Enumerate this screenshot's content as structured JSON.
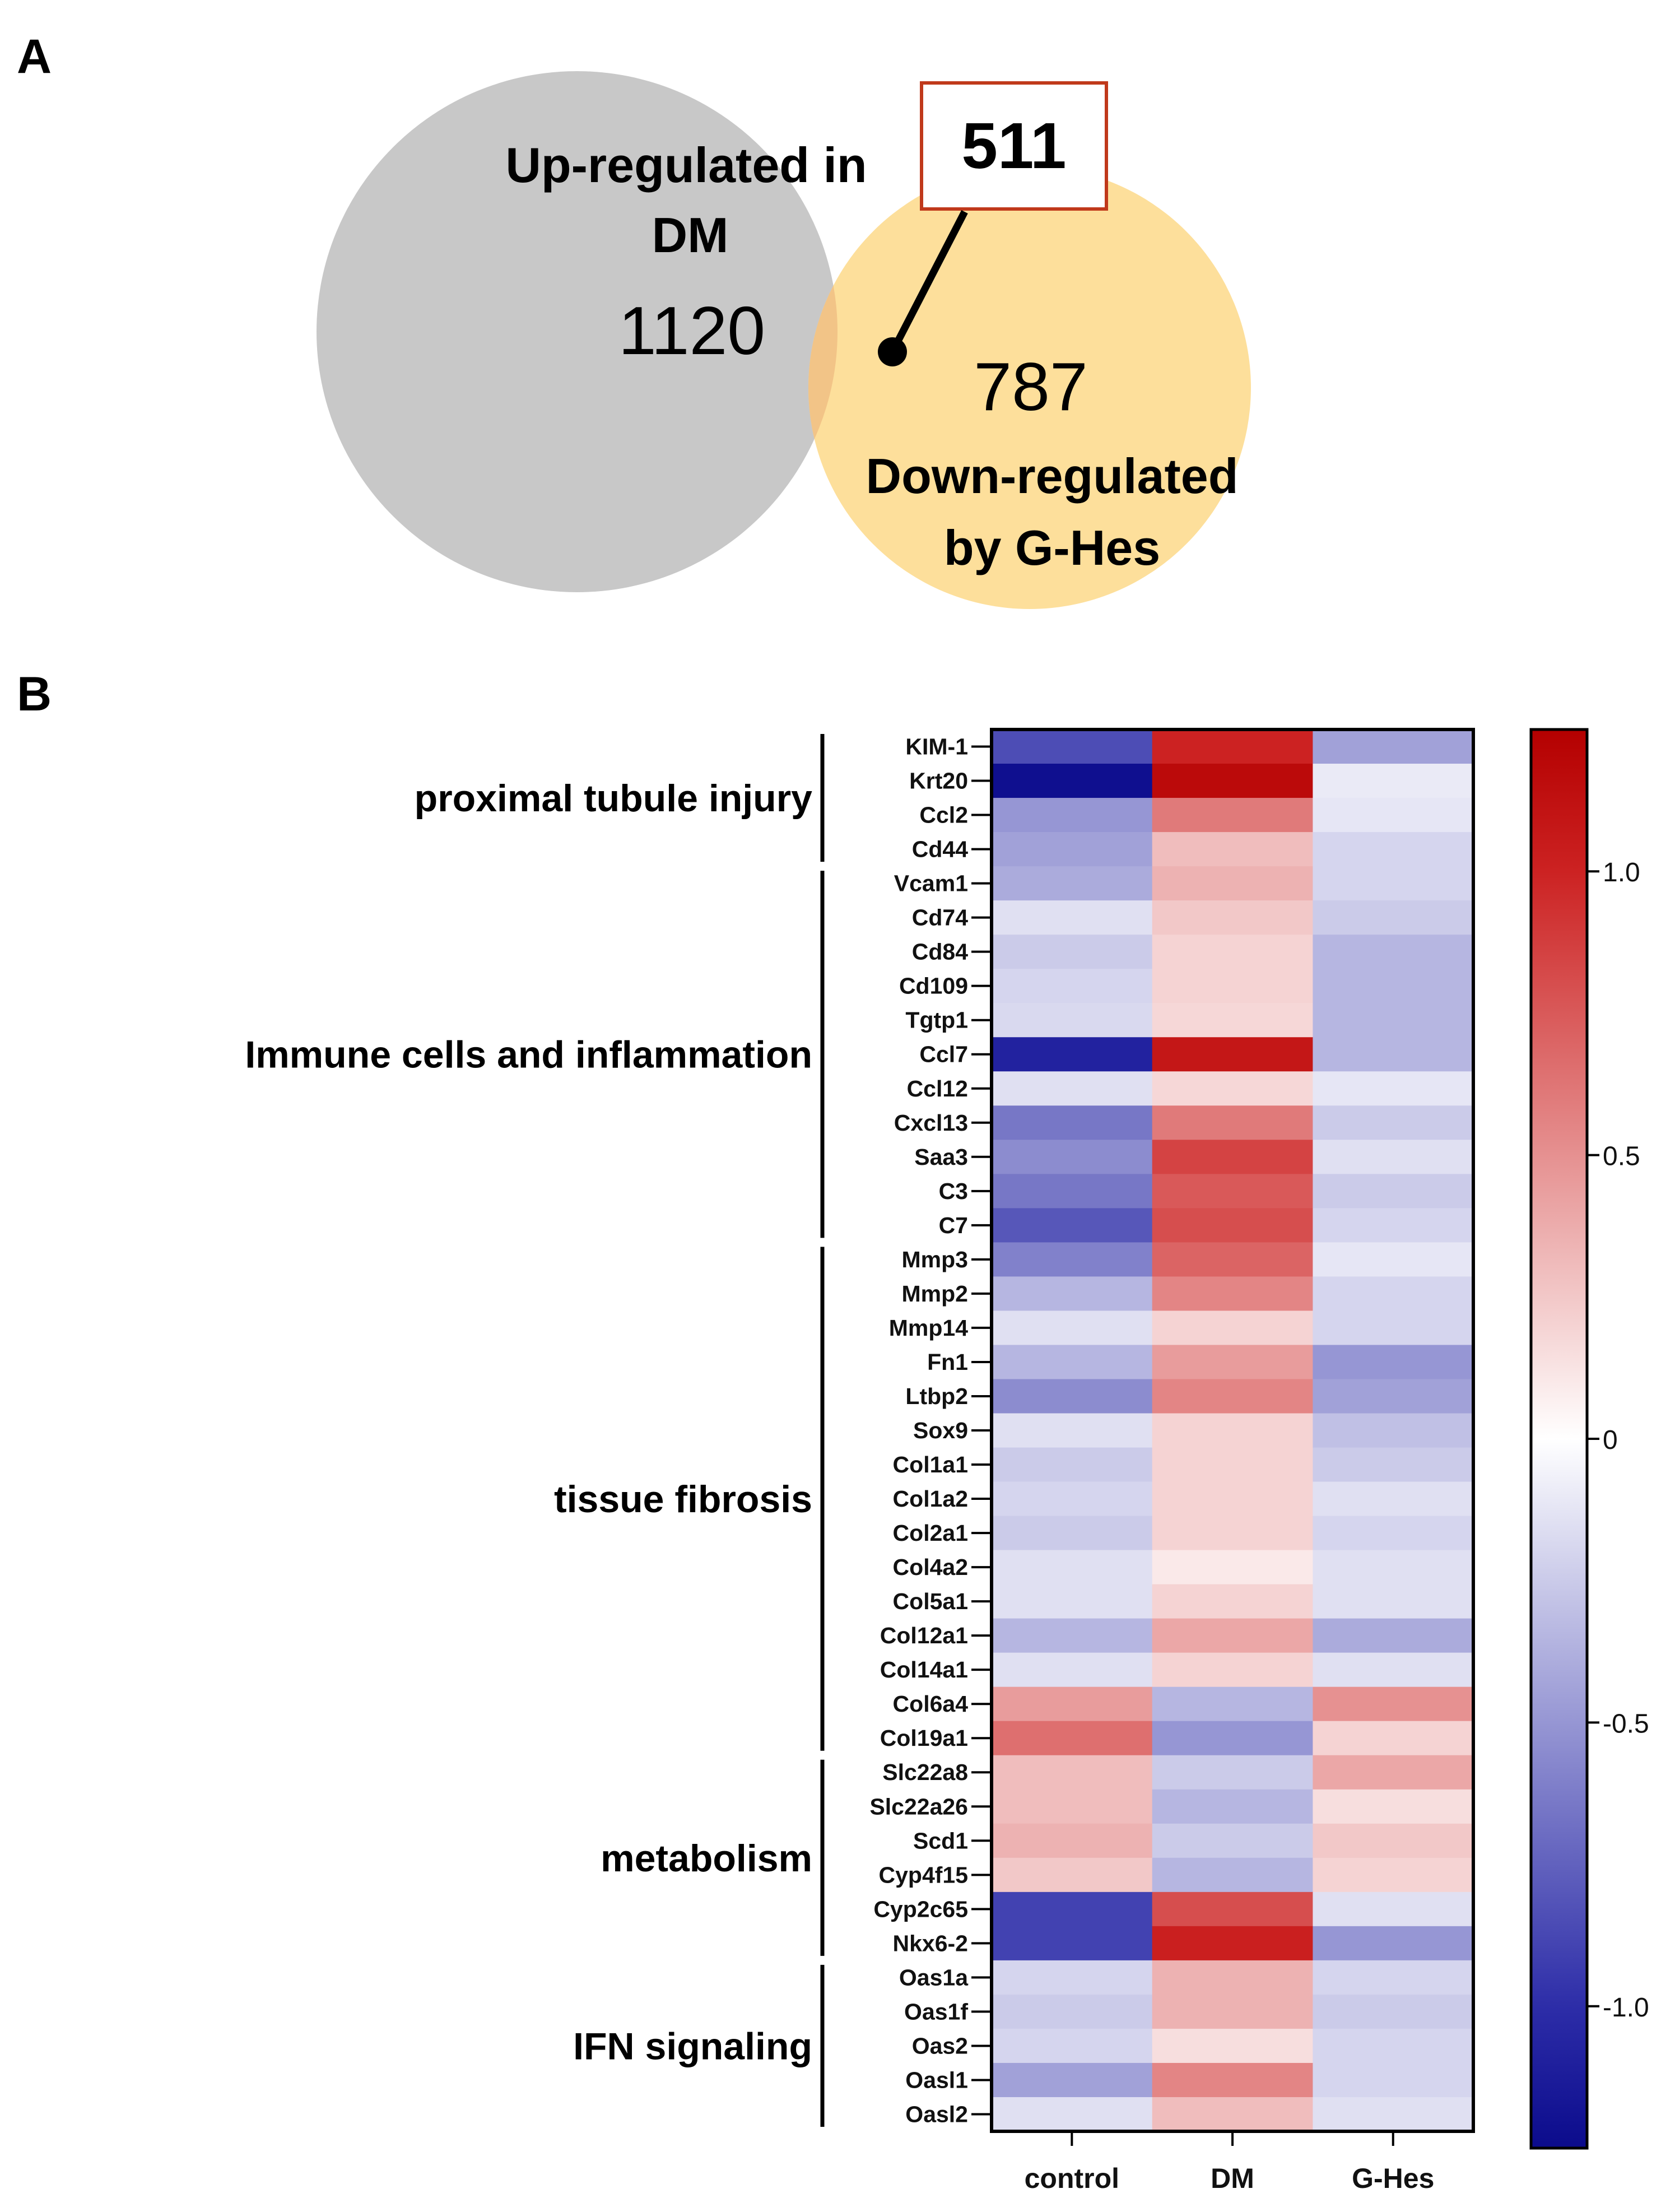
{
  "panels": {
    "a": "A",
    "b": "B"
  },
  "venn": {
    "left_label_line1": "Up-regulated in",
    "left_label_line2": "DM",
    "left_count": "1120",
    "overlap_count": "511",
    "right_count": "787",
    "right_label_line1": "Down-regulated",
    "right_label_line2": "by G-Hes",
    "colors": {
      "left": "#c8c8c8",
      "right": "#fddf9b",
      "overlap": "#f2c487",
      "box_border": "#c0391b"
    }
  },
  "chart_data": {
    "type": "heatmap",
    "columns": [
      "control",
      "DM",
      "G-Hes"
    ],
    "genes": [
      "KIM-1",
      "Krt20",
      "Ccl2",
      "Cd44",
      "Vcam1",
      "Cd74",
      "Cd84",
      "Cd109",
      "Tgtp1",
      "Ccl7",
      "Ccl12",
      "Cxcl13",
      "Saa3",
      "C3",
      "C7",
      "Mmp3",
      "Mmp2",
      "Mmp14",
      "Fn1",
      "Ltbp2",
      "Sox9",
      "Col1a1",
      "Col1a2",
      "Col2a1",
      "Col4a2",
      "Col5a1",
      "Col12a1",
      "Col14a1",
      "Col6a4",
      "Col19a1",
      "Slc22a8",
      "Slc22a26",
      "Scd1",
      "Cyp4f15",
      "Cyp2c65",
      "Nkx6-2",
      "Oas1a",
      "Oas1f",
      "Oas2",
      "Oasl1",
      "Oasl2"
    ],
    "values": [
      [
        -0.85,
        1.0,
        -0.45
      ],
      [
        -1.22,
        1.18,
        -0.1
      ],
      [
        -0.5,
        0.6,
        -0.12
      ],
      [
        -0.45,
        0.3,
        -0.2
      ],
      [
        -0.4,
        0.35,
        -0.2
      ],
      [
        -0.15,
        0.25,
        -0.25
      ],
      [
        -0.25,
        0.2,
        -0.35
      ],
      [
        -0.2,
        0.2,
        -0.35
      ],
      [
        -0.18,
        0.18,
        -0.35
      ],
      [
        -1.08,
        1.08,
        -0.35
      ],
      [
        -0.15,
        0.18,
        -0.12
      ],
      [
        -0.65,
        0.6,
        -0.25
      ],
      [
        -0.55,
        0.85,
        -0.15
      ],
      [
        -0.65,
        0.75,
        -0.25
      ],
      [
        -0.8,
        0.8,
        -0.2
      ],
      [
        -0.6,
        0.7,
        -0.12
      ],
      [
        -0.35,
        0.55,
        -0.2
      ],
      [
        -0.15,
        0.2,
        -0.2
      ],
      [
        -0.35,
        0.45,
        -0.5
      ],
      [
        -0.55,
        0.55,
        -0.45
      ],
      [
        -0.15,
        0.2,
        -0.3
      ],
      [
        -0.25,
        0.2,
        -0.25
      ],
      [
        -0.2,
        0.2,
        -0.15
      ],
      [
        -0.25,
        0.2,
        -0.2
      ],
      [
        -0.15,
        0.1,
        -0.15
      ],
      [
        -0.15,
        0.2,
        -0.15
      ],
      [
        -0.35,
        0.4,
        -0.4
      ],
      [
        -0.15,
        0.2,
        -0.15
      ],
      [
        0.45,
        -0.35,
        0.5
      ],
      [
        0.65,
        -0.5,
        0.2
      ],
      [
        0.3,
        -0.25,
        0.4
      ],
      [
        0.3,
        -0.35,
        0.15
      ],
      [
        0.35,
        -0.25,
        0.25
      ],
      [
        0.25,
        -0.35,
        0.2
      ],
      [
        -0.9,
        0.8,
        -0.15
      ],
      [
        -0.9,
        1.02,
        -0.5
      ],
      [
        -0.2,
        0.35,
        -0.2
      ],
      [
        -0.25,
        0.35,
        -0.25
      ],
      [
        -0.2,
        0.15,
        -0.2
      ],
      [
        -0.45,
        0.55,
        -0.2
      ],
      [
        -0.15,
        0.3,
        -0.15
      ]
    ],
    "groups": [
      {
        "label": "proximal tubule injury",
        "start": 0,
        "end": 3
      },
      {
        "label": "Immune cells and inflammation",
        "start": 4,
        "end": 14
      },
      {
        "label": "tissue fibrosis",
        "start": 15,
        "end": 29
      },
      {
        "label": "metabolism",
        "start": 30,
        "end": 35
      },
      {
        "label": "IFN signaling",
        "start": 36,
        "end": 40
      }
    ],
    "colorbar": {
      "range": [
        -1.25,
        1.25
      ],
      "ticks": [
        1.0,
        0.5,
        0,
        -0.5,
        -1.0
      ],
      "tick_labels": [
        "1.0",
        "0.5",
        "0",
        "-0.5",
        "-1.0"
      ],
      "colors": {
        "low": "#0b0b8c",
        "mid_low": "#5555c0",
        "mid": "#ffffff",
        "mid_high": "#d84a4a",
        "high": "#b40000"
      }
    }
  }
}
